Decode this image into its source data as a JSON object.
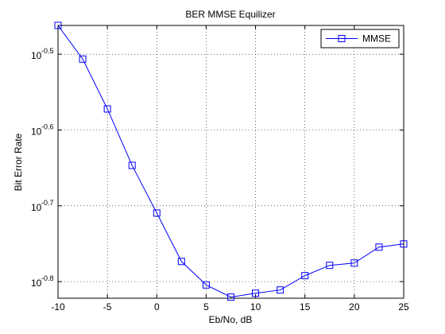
{
  "chart_data": {
    "type": "line",
    "title": "BER MMSE Equilizer",
    "xlabel": "Eb/No, dB",
    "ylabel": "Bit Error Rate",
    "x": [
      -10,
      -7.5,
      -5,
      -2.5,
      0,
      2.5,
      5,
      7.5,
      10,
      12.5,
      15,
      17.5,
      20,
      22.5,
      25
    ],
    "series": [
      {
        "name": "MMSE",
        "color": "#0000ff",
        "marker": "square",
        "values": [
          0.3451,
          0.3116,
          0.2678,
          0.2256,
          0.1952,
          0.1685,
          0.1569,
          0.1512,
          0.153,
          0.1545,
          0.1614,
          0.1665,
          0.1677,
          0.176,
          0.1777
        ]
      }
    ],
    "xlim": [
      -10,
      25
    ],
    "xticks": [
      -10,
      -5,
      0,
      5,
      10,
      15,
      20,
      25
    ],
    "ylim": [
      0.1507,
      0.3451
    ],
    "yscale": "log",
    "yticks": [
      {
        "value": 0.31623,
        "label": "10",
        "exponent": "-0.5"
      },
      {
        "value": 0.25119,
        "label": "10",
        "exponent": "-0.6"
      },
      {
        "value": 0.19953,
        "label": "10",
        "exponent": "-0.7"
      },
      {
        "value": 0.15849,
        "label": "10",
        "exponent": "-0.8"
      }
    ],
    "grid": true,
    "legend": "northeast"
  }
}
